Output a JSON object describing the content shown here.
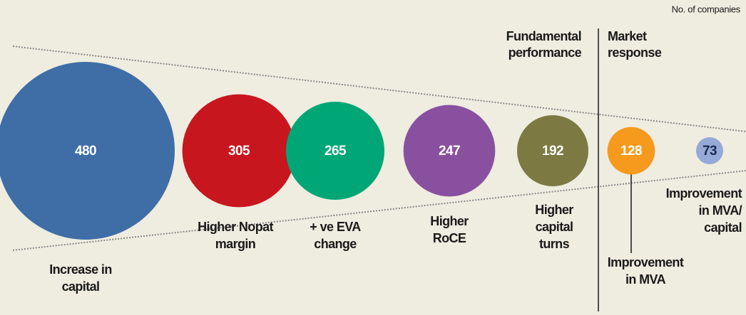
{
  "chart_data": {
    "type": "bubble",
    "unit_label": "No. of companies",
    "sections": [
      [
        "Fundamental",
        "performance"
      ],
      [
        "Market",
        "response"
      ]
    ],
    "categories": [
      [
        "Increase in",
        "capital"
      ],
      [
        "Higher Nopat",
        "margin"
      ],
      [
        "+ ve EVA",
        "change"
      ],
      [
        "Higher",
        "RoCE"
      ],
      [
        "Higher",
        "capital",
        "turns"
      ],
      [
        "Improvement",
        "in MVA"
      ],
      [
        "Improvement",
        "in MVA/",
        "capital"
      ]
    ],
    "values": [
      480,
      305,
      265,
      247,
      192,
      128,
      73
    ],
    "colors": [
      "#3f6ea6",
      "#c8161e",
      "#00a676",
      "#8a50a0",
      "#7c7a42",
      "#f59a1d",
      "#96aad8"
    ],
    "value_label_colors": [
      "#ffffff",
      "#ffffff",
      "#ffffff",
      "#ffffff",
      "#ffffff",
      "#ffffff",
      "#1c2b4c"
    ]
  }
}
